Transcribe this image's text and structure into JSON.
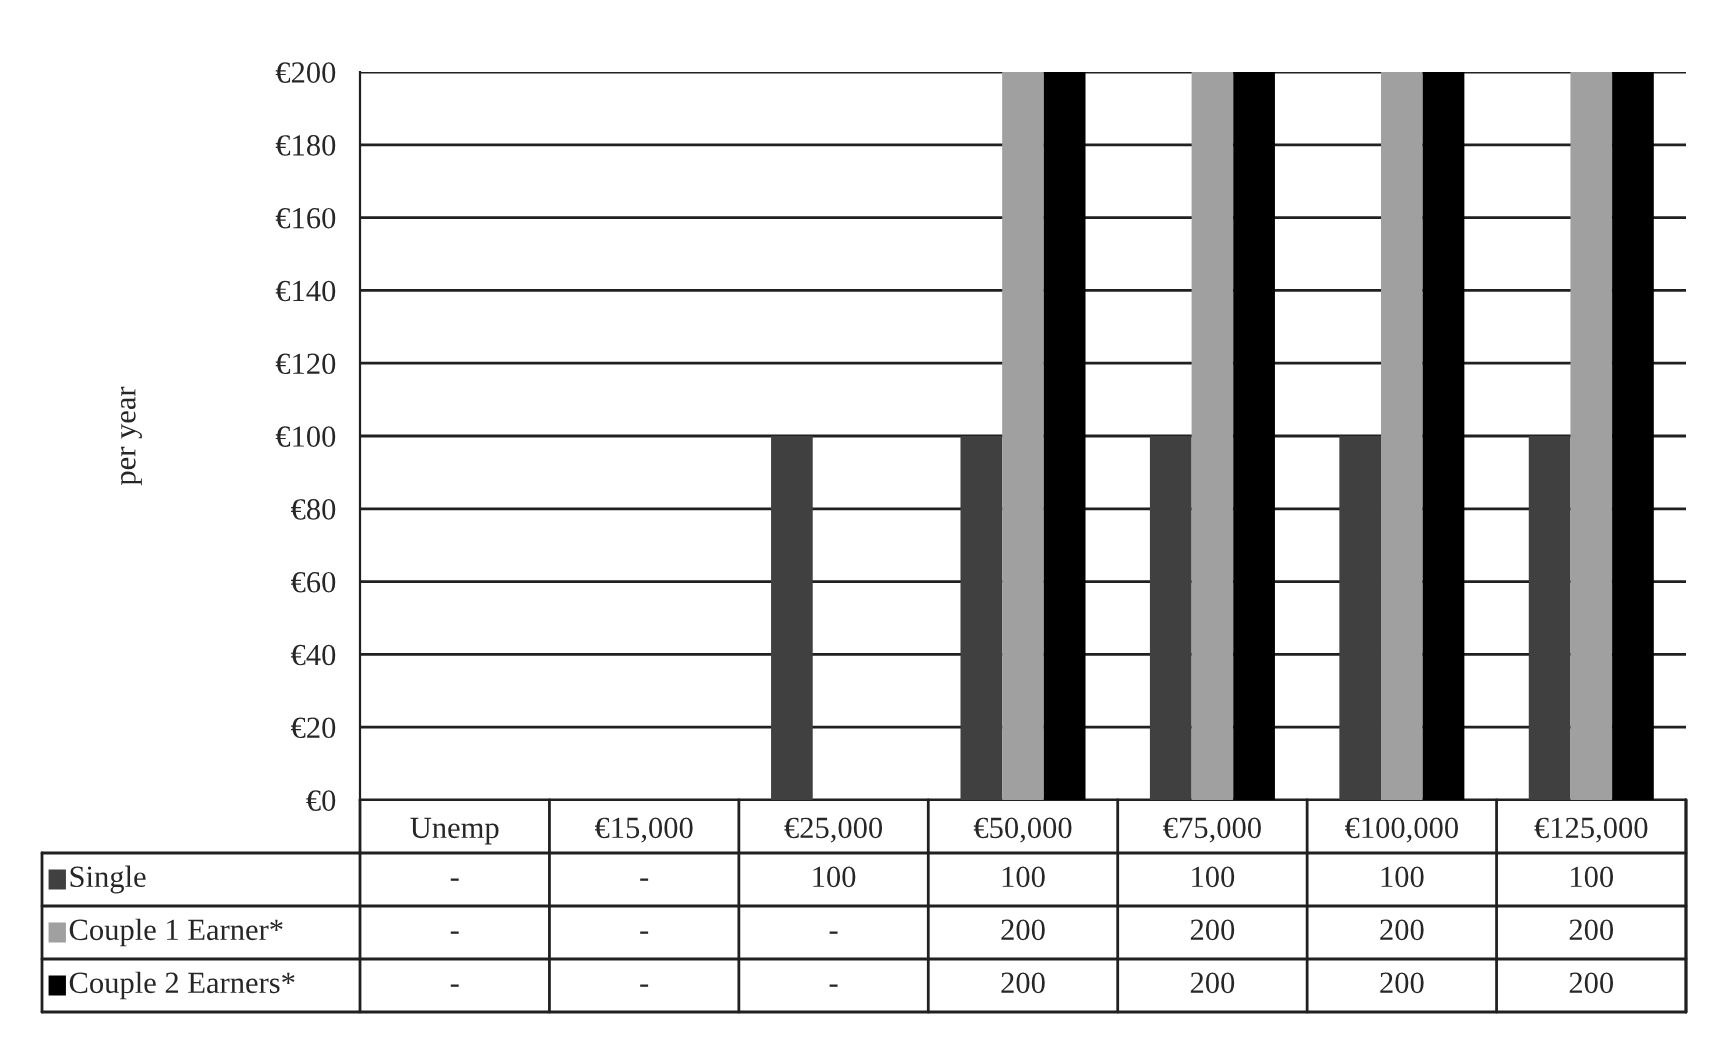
{
  "chart_data": {
    "type": "bar",
    "ylabel": "per year",
    "categories": [
      "Unemp",
      "€15,000",
      "€25,000",
      "€50,000",
      "€75,000",
      "€100,000",
      "€125,000"
    ],
    "series": [
      {
        "name": "Single",
        "color": "#404040",
        "values": [
          null,
          null,
          100,
          100,
          100,
          100,
          100
        ],
        "value_labels": [
          "-",
          "-",
          "100",
          "100",
          "100",
          "100",
          "100"
        ]
      },
      {
        "name": "Couple 1 Earner*",
        "color": "#a0a0a0",
        "values": [
          null,
          null,
          null,
          200,
          200,
          200,
          200
        ],
        "value_labels": [
          "-",
          "-",
          "-",
          "200",
          "200",
          "200",
          "200"
        ]
      },
      {
        "name": "Couple 2 Earners*",
        "color": "#000000",
        "values": [
          null,
          null,
          null,
          200,
          200,
          200,
          200
        ],
        "value_labels": [
          "-",
          "-",
          "-",
          "200",
          "200",
          "200",
          "200"
        ]
      }
    ],
    "ylim": [
      0,
      200
    ],
    "yticks": [
      {
        "value": 0,
        "label": "€0"
      },
      {
        "value": 20,
        "label": "€20"
      },
      {
        "value": 40,
        "label": "€40"
      },
      {
        "value": 60,
        "label": "€60"
      },
      {
        "value": 80,
        "label": "€80"
      },
      {
        "value": 100,
        "label": "€100"
      },
      {
        "value": 120,
        "label": "€120"
      },
      {
        "value": 140,
        "label": "€140"
      },
      {
        "value": 160,
        "label": "€160"
      },
      {
        "value": 180,
        "label": "€180"
      },
      {
        "value": 200,
        "label": "€200"
      }
    ],
    "grid": "y",
    "legend": "bottom"
  }
}
